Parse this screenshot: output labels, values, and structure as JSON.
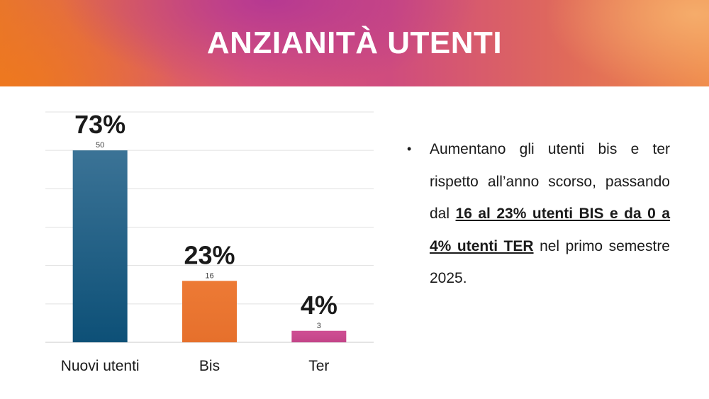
{
  "header": {
    "title": "ANZIANITÀ UTENTI"
  },
  "chart_data": {
    "type": "bar",
    "categories": [
      "Nuovi utenti",
      "Bis",
      "Ter"
    ],
    "values": [
      50,
      16,
      3
    ],
    "percent_labels": [
      "73%",
      "23%",
      "4%"
    ],
    "ylim": [
      0,
      60
    ],
    "grid": true,
    "colors": [
      "#1f5f85",
      "#e8742f",
      "#c8488e"
    ]
  },
  "note": {
    "part1": "Aumentano gli utenti bis e ter rispetto all’anno scorso, passando dal ",
    "emphasis": "16 al 23% utenti BIS e da 0 a 4% utenti TER",
    "part2": " nel primo semestre 2025."
  }
}
